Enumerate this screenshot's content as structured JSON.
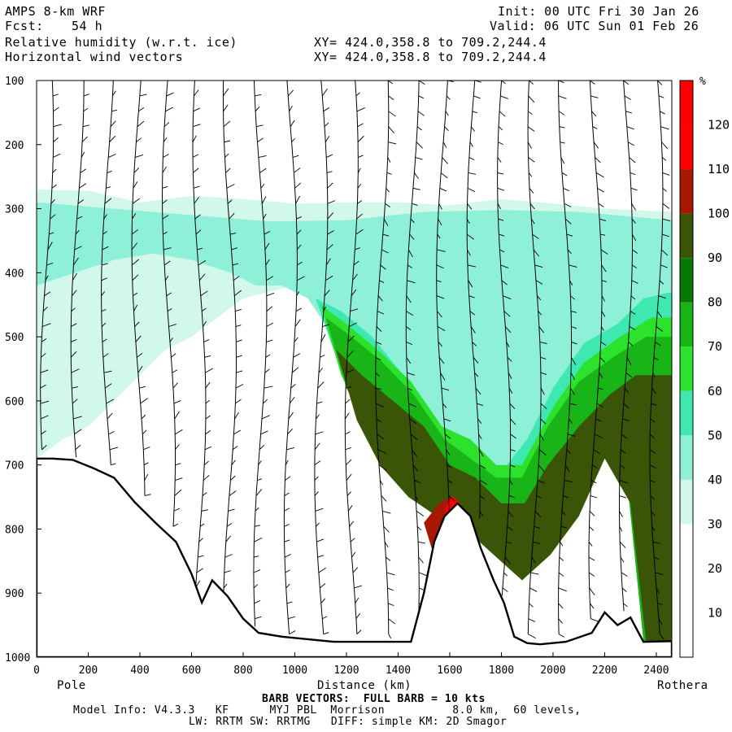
{
  "header": {
    "model": "AMPS 8-km WRF",
    "fcst_label": "Fcst:",
    "fcst_value": "54 h",
    "field1": "Relative humidity (w.r.t. ice)",
    "field2": "Horizontal wind vectors",
    "init": "Init: 00 UTC Fri 30 Jan 26",
    "valid": "Valid: 06 UTC Sun 01 Feb 26",
    "xy1": "XY= 424.0,358.8 to 709.2,244.4",
    "xy2": "XY= 424.0,358.8 to 709.2,244.4"
  },
  "footer": {
    "barb": "BARB VECTORS:  FULL BARB = 10 kts",
    "model_info": "Model Info: V4.3.3   KF      MYJ PBL  Morrison          8.0 km,  60 levels,",
    "physics": "LW: RRTM SW: RRTMG   DIFF: simple KM: 2D Smagor"
  },
  "chart_data": {
    "type": "heatmap",
    "title": "Relative humidity (w.r.t. ice) cross-section",
    "xlabel": "Distance (km)",
    "ylabel": "",
    "x_ticks": [
      0,
      200,
      400,
      600,
      800,
      1000,
      1200,
      1400,
      1600,
      1800,
      2000,
      2200,
      2400
    ],
    "x_tick_labels": [
      "0",
      "200",
      "400",
      "600",
      "800",
      "1000",
      "1200",
      "1400",
      "1600",
      "1800",
      "2000",
      "2200",
      "2400"
    ],
    "y_ticks": [
      100,
      200,
      300,
      400,
      500,
      600,
      700,
      800,
      900,
      1000
    ],
    "y_tick_labels": [
      "100",
      "200",
      "300",
      "400",
      "500",
      "600",
      "700",
      "800",
      "900",
      "1000"
    ],
    "xlim": [
      0,
      2460
    ],
    "ylim": [
      1000,
      100
    ],
    "left_endpoint": "Pole",
    "right_endpoint": "Rothera",
    "colorbar": {
      "unit": "%",
      "labels": [
        "10",
        "20",
        "30",
        "40",
        "50",
        "60",
        "70",
        "80",
        "90",
        "100",
        "110",
        "120"
      ],
      "colors": [
        "#ffffff",
        "#ffffff",
        "#ffffff",
        "#d2f8ec",
        "#8ff0d8",
        "#3ee8b0",
        "#2ce22c",
        "#18b418",
        "#087808",
        "#3a5508",
        "#a81800",
        "#ff0000"
      ]
    },
    "surface_pressure": [
      [
        0,
        690
      ],
      [
        60,
        690
      ],
      [
        140,
        692
      ],
      [
        220,
        705
      ],
      [
        300,
        720
      ],
      [
        380,
        758
      ],
      [
        460,
        790
      ],
      [
        540,
        820
      ],
      [
        600,
        870
      ],
      [
        640,
        915
      ],
      [
        680,
        880
      ],
      [
        740,
        905
      ],
      [
        800,
        940
      ],
      [
        860,
        962
      ],
      [
        950,
        968
      ],
      [
        1050,
        972
      ],
      [
        1150,
        976
      ],
      [
        1300,
        976
      ],
      [
        1450,
        976
      ],
      [
        1500,
        900
      ],
      [
        1540,
        820
      ],
      [
        1580,
        780
      ],
      [
        1630,
        760
      ],
      [
        1680,
        780
      ],
      [
        1720,
        830
      ],
      [
        1770,
        880
      ],
      [
        1810,
        915
      ],
      [
        1850,
        968
      ],
      [
        1900,
        978
      ],
      [
        1950,
        980
      ],
      [
        2050,
        976
      ],
      [
        2150,
        962
      ],
      [
        2200,
        930
      ],
      [
        2250,
        950
      ],
      [
        2300,
        938
      ],
      [
        2350,
        976
      ],
      [
        2460,
        975
      ]
    ],
    "rh_regions": [
      {
        "level": 40,
        "points": [
          [
            0,
            270
          ],
          [
            200,
            272
          ],
          [
            400,
            290
          ],
          [
            600,
            280
          ],
          [
            800,
            285
          ],
          [
            1000,
            292
          ],
          [
            1200,
            290
          ],
          [
            1400,
            290
          ],
          [
            1600,
            295
          ],
          [
            1800,
            285
          ],
          [
            2000,
            292
          ],
          [
            2200,
            300
          ],
          [
            2460,
            305
          ],
          [
            2460,
            975
          ],
          [
            2360,
            975
          ],
          [
            2300,
            600
          ],
          [
            2200,
            520
          ],
          [
            2100,
            560
          ],
          [
            1950,
            640
          ],
          [
            1850,
            720
          ],
          [
            1750,
            760
          ],
          [
            1650,
            700
          ],
          [
            1500,
            660
          ],
          [
            1400,
            700
          ],
          [
            1300,
            640
          ],
          [
            1200,
            560
          ],
          [
            1100,
            460
          ],
          [
            1000,
            420
          ],
          [
            900,
            430
          ],
          [
            800,
            440
          ],
          [
            700,
            470
          ],
          [
            600,
            500
          ],
          [
            500,
            520
          ],
          [
            400,
            560
          ],
          [
            300,
            600
          ],
          [
            200,
            640
          ],
          [
            100,
            660
          ],
          [
            0,
            690
          ]
        ]
      },
      {
        "level": 50,
        "points": [
          [
            0,
            290
          ],
          [
            300,
            300
          ],
          [
            600,
            310
          ],
          [
            900,
            320
          ],
          [
            1200,
            318
          ],
          [
            1500,
            305
          ],
          [
            1800,
            302
          ],
          [
            2100,
            305
          ],
          [
            2460,
            318
          ],
          [
            2460,
            975
          ],
          [
            2300,
            580
          ],
          [
            2150,
            560
          ],
          [
            1950,
            680
          ],
          [
            1800,
            760
          ],
          [
            1650,
            740
          ],
          [
            1500,
            700
          ],
          [
            1350,
            680
          ],
          [
            1250,
            600
          ],
          [
            1150,
            500
          ],
          [
            1050,
            440
          ],
          [
            950,
            420
          ],
          [
            850,
            420
          ],
          [
            750,
            400
          ],
          [
            600,
            380
          ],
          [
            450,
            370
          ],
          [
            300,
            380
          ],
          [
            150,
            400
          ],
          [
            0,
            420
          ]
        ]
      },
      {
        "level": 60,
        "points": [
          [
            1080,
            440
          ],
          [
            1180,
            460
          ],
          [
            1300,
            500
          ],
          [
            1420,
            560
          ],
          [
            1550,
            640
          ],
          [
            1650,
            680
          ],
          [
            1780,
            720
          ],
          [
            1900,
            660
          ],
          [
            2000,
            580
          ],
          [
            2120,
            510
          ],
          [
            2250,
            480
          ],
          [
            2350,
            440
          ],
          [
            2460,
            430
          ],
          [
            2460,
            975
          ],
          [
            2350,
            975
          ],
          [
            2300,
            640
          ],
          [
            2200,
            560
          ],
          [
            2050,
            690
          ],
          [
            1950,
            780
          ],
          [
            1850,
            800
          ],
          [
            1720,
            760
          ],
          [
            1600,
            720
          ],
          [
            1480,
            690
          ],
          [
            1350,
            650
          ],
          [
            1250,
            590
          ],
          [
            1150,
            520
          ]
        ]
      },
      {
        "level": 70,
        "points": [
          [
            1100,
            450
          ],
          [
            1200,
            480
          ],
          [
            1320,
            520
          ],
          [
            1450,
            570
          ],
          [
            1570,
            640
          ],
          [
            1680,
            660
          ],
          [
            1780,
            700
          ],
          [
            1880,
            700
          ],
          [
            2000,
            610
          ],
          [
            2120,
            540
          ],
          [
            2260,
            500
          ],
          [
            2380,
            470
          ],
          [
            2460,
            470
          ],
          [
            2460,
            975
          ],
          [
            2360,
            975
          ],
          [
            2300,
            660
          ],
          [
            2200,
            600
          ],
          [
            2100,
            700
          ],
          [
            2000,
            790
          ],
          [
            1880,
            840
          ],
          [
            1760,
            790
          ],
          [
            1640,
            750
          ],
          [
            1520,
            720
          ],
          [
            1400,
            690
          ],
          [
            1280,
            640
          ],
          [
            1180,
            560
          ]
        ]
      },
      {
        "level": 80,
        "points": [
          [
            1120,
            470
          ],
          [
            1220,
            500
          ],
          [
            1340,
            540
          ],
          [
            1460,
            590
          ],
          [
            1580,
            660
          ],
          [
            1680,
            690
          ],
          [
            1780,
            720
          ],
          [
            1880,
            720
          ],
          [
            1980,
            640
          ],
          [
            2100,
            570
          ],
          [
            2240,
            530
          ],
          [
            2360,
            500
          ],
          [
            2460,
            500
          ],
          [
            2460,
            975
          ],
          [
            2350,
            975
          ],
          [
            2280,
            700
          ],
          [
            2200,
            640
          ],
          [
            2100,
            730
          ],
          [
            1990,
            810
          ],
          [
            1880,
            860
          ],
          [
            1770,
            810
          ],
          [
            1650,
            770
          ],
          [
            1530,
            740
          ],
          [
            1410,
            710
          ],
          [
            1300,
            660
          ],
          [
            1200,
            580
          ]
        ]
      },
      {
        "level": 100,
        "points": [
          [
            1160,
            520
          ],
          [
            1260,
            560
          ],
          [
            1380,
            600
          ],
          [
            1500,
            640
          ],
          [
            1600,
            700
          ],
          [
            1700,
            720
          ],
          [
            1800,
            760
          ],
          [
            1890,
            760
          ],
          [
            1980,
            700
          ],
          [
            2100,
            640
          ],
          [
            2220,
            590
          ],
          [
            2320,
            560
          ],
          [
            2460,
            560
          ],
          [
            2460,
            975
          ],
          [
            2360,
            975
          ],
          [
            2300,
            760
          ],
          [
            2200,
            690
          ],
          [
            2100,
            780
          ],
          [
            1990,
            840
          ],
          [
            1880,
            880
          ],
          [
            1770,
            840
          ],
          [
            1660,
            800
          ],
          [
            1550,
            780
          ],
          [
            1440,
            750
          ],
          [
            1330,
            700
          ],
          [
            1240,
            630
          ]
        ]
      },
      {
        "level": 110,
        "points": [
          [
            1500,
            790
          ],
          [
            1560,
            760
          ],
          [
            1600,
            750
          ],
          [
            1620,
            770
          ],
          [
            1580,
            810
          ],
          [
            1530,
            830
          ]
        ]
      },
      {
        "level": 120,
        "points": [
          [
            1580,
            770
          ],
          [
            1610,
            748
          ],
          [
            1640,
            760
          ],
          [
            1620,
            800
          ],
          [
            1590,
            810
          ]
        ]
      }
    ],
    "barb_note": "Horizontal wind barbs drawn on every model level along each vertical column"
  }
}
